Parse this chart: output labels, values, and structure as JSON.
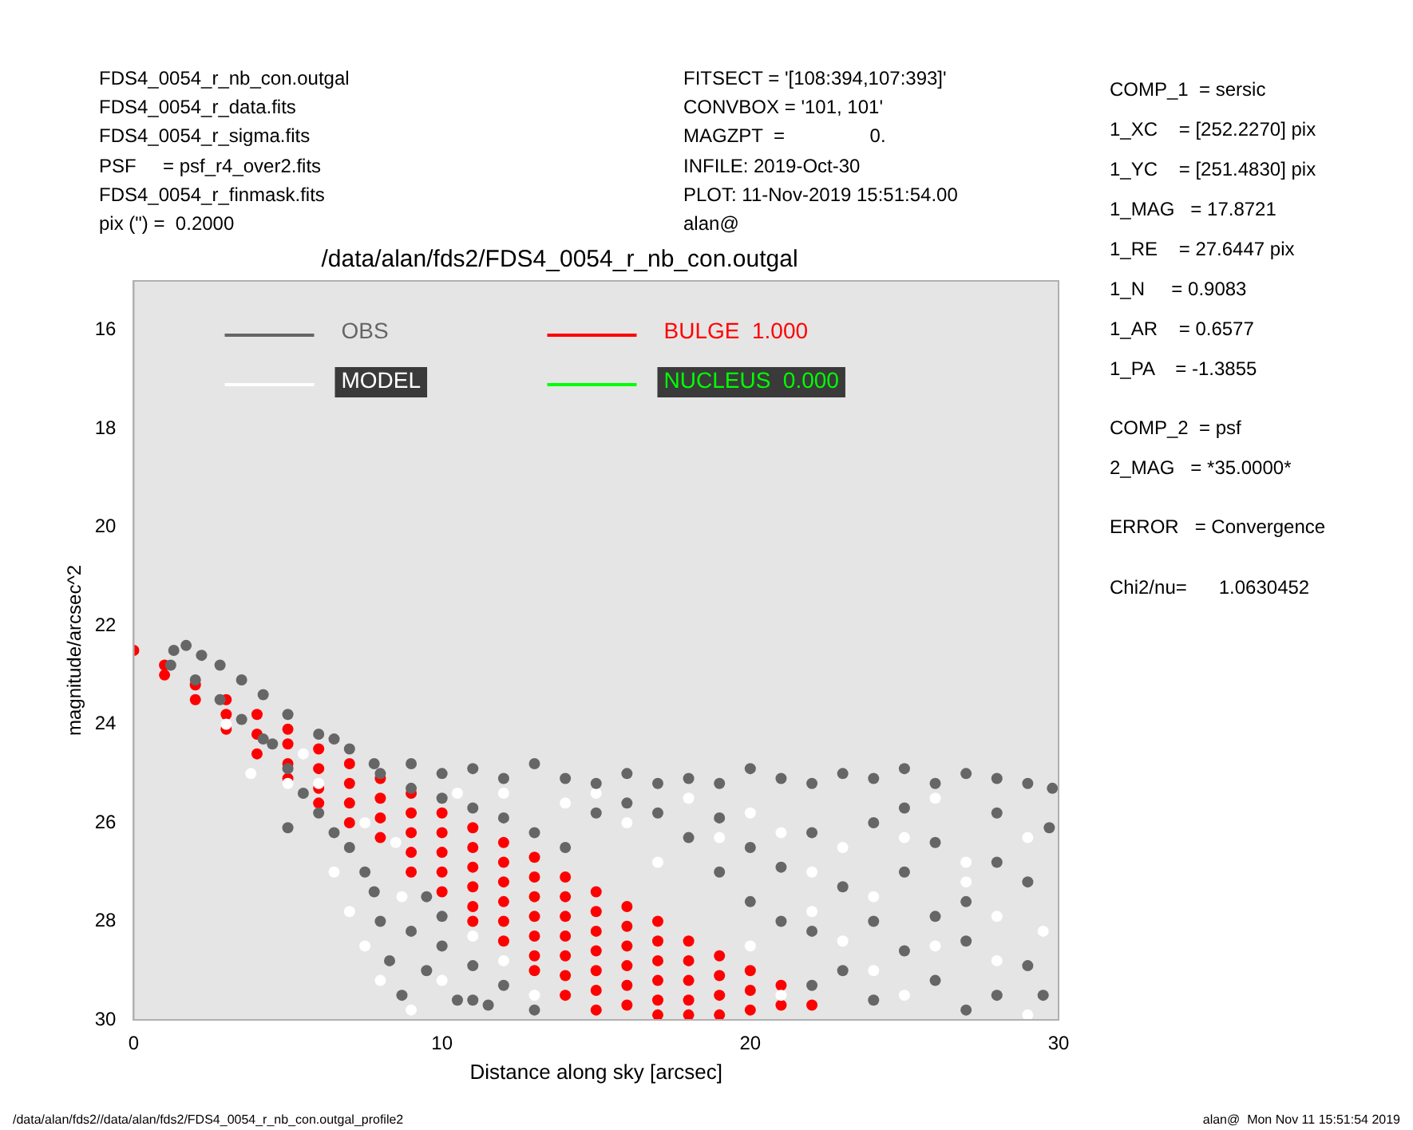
{
  "chart_data": {
    "type": "scatter",
    "title": "/data/alan/fds2/FDS4_0054_r_nb_con.outgal",
    "xlabel": "Distance along sky [arcsec]",
    "ylabel": "magnitude/arcsec^2",
    "xlim": [
      0,
      30
    ],
    "xticks": [
      0,
      10,
      20,
      30
    ],
    "ylim": [
      30,
      15
    ],
    "yticks": [
      16,
      18,
      20,
      22,
      24,
      26,
      28,
      30
    ],
    "marker": "circle",
    "legend": "top left",
    "series": [
      {
        "name": "OBS",
        "color": "#666666",
        "x": [
          1.3,
          1.7,
          2.2,
          2.8,
          3.5,
          4.2,
          5,
          6,
          6.5,
          7,
          7.8,
          1.2,
          2,
          2.8,
          3.5,
          4.2,
          4.5,
          5,
          5.5,
          6,
          6.5,
          7,
          7.5,
          7.8,
          8,
          8.3,
          8.7,
          5,
          9,
          10,
          11,
          12,
          13,
          14,
          15,
          16,
          17,
          18,
          19,
          20,
          21,
          22,
          23,
          24,
          25,
          26,
          27,
          28,
          29,
          29.8,
          17,
          18,
          19,
          20,
          21,
          22,
          23,
          24,
          25,
          26,
          27,
          28,
          29,
          29.7,
          24,
          25,
          26,
          27,
          28,
          29,
          23,
          22,
          24,
          26,
          27,
          29.5,
          21,
          20,
          19,
          22,
          25,
          28,
          16,
          15,
          9,
          9.5,
          10,
          10.5,
          11,
          11.5,
          12,
          13,
          9.5,
          10,
          11,
          8,
          9,
          10,
          11,
          12,
          13,
          14
        ],
        "values": [
          22.5,
          22.4,
          22.6,
          22.8,
          23.1,
          23.4,
          23.8,
          24.2,
          24.3,
          24.5,
          24.8,
          22.8,
          23.1,
          23.5,
          23.9,
          24.3,
          24.4,
          24.9,
          25.4,
          25.8,
          26.2,
          26.5,
          27.0,
          27.4,
          28.0,
          28.8,
          29.5,
          26.1,
          24.8,
          25.0,
          24.9,
          25.1,
          24.8,
          25.1,
          25.2,
          25.0,
          25.2,
          25.1,
          25.2,
          24.9,
          25.1,
          25.2,
          25.0,
          25.1,
          24.9,
          25.2,
          25.0,
          25.1,
          25.2,
          25.3,
          25.8,
          26.3,
          25.9,
          26.5,
          26.9,
          26.2,
          27.3,
          26.0,
          27.0,
          26.4,
          27.6,
          26.8,
          27.2,
          26.1,
          28.0,
          28.6,
          29.2,
          28.4,
          29.5,
          28.9,
          29.0,
          28.2,
          29.6,
          27.9,
          29.8,
          29.5,
          28.0,
          27.6,
          27.0,
          29.3,
          25.7,
          25.8,
          25.6,
          25.8,
          28.2,
          29.0,
          28.5,
          29.6,
          28.9,
          29.7,
          29.3,
          29.8,
          27.5,
          27.9,
          29.6,
          25.0,
          25.3,
          25.5,
          25.7,
          25.9,
          26.2,
          26.5
        ]
      },
      {
        "name": "MODEL",
        "color": "#ffffff",
        "x": [
          3,
          3.8,
          5,
          6,
          6.5,
          7,
          7.5,
          8,
          8.5,
          8.7,
          9,
          10,
          11,
          12,
          13,
          14,
          16,
          17,
          18,
          19,
          20,
          21,
          22,
          23,
          24,
          25,
          26,
          27,
          28,
          29,
          29.5,
          21,
          22,
          23,
          24,
          25,
          26,
          27,
          28,
          29,
          20,
          7.5,
          10.5,
          12,
          15,
          5.5
        ],
        "values": [
          24.0,
          25.0,
          25.2,
          25.2,
          27.0,
          27.8,
          28.5,
          29.2,
          26.4,
          27.5,
          29.8,
          29.2,
          28.3,
          28.8,
          29.5,
          25.6,
          26.0,
          26.8,
          25.5,
          26.3,
          25.8,
          26.2,
          27.0,
          26.5,
          27.5,
          26.3,
          28.5,
          26.8,
          27.9,
          26.3,
          28.2,
          29.5,
          27.8,
          28.4,
          29.0,
          29.5,
          25.5,
          27.2,
          28.8,
          29.9,
          28.5,
          26.0,
          25.4,
          25.4,
          25.4,
          24.6
        ]
      },
      {
        "name": "BULGE  1.000",
        "color": "#ff0000",
        "x": [
          0,
          1,
          1,
          2,
          2,
          3,
          3,
          3,
          4,
          4,
          4,
          5,
          5,
          5,
          5,
          6,
          6,
          6,
          6,
          7,
          7,
          7,
          7,
          8,
          8,
          8,
          8,
          9,
          9,
          9,
          9,
          9,
          10,
          10,
          10,
          10,
          10,
          11,
          11,
          11,
          11,
          11,
          11,
          12,
          12,
          12,
          12,
          12,
          12,
          13,
          13,
          13,
          13,
          13,
          13,
          13,
          14,
          14,
          14,
          14,
          14,
          14,
          14,
          15,
          15,
          15,
          15,
          15,
          15,
          15,
          16,
          16,
          16,
          16,
          16,
          16,
          17,
          17,
          17,
          17,
          17,
          17,
          18,
          18,
          18,
          18,
          18,
          19,
          19,
          19,
          19,
          20,
          20,
          20,
          21,
          21,
          22
        ],
        "values": [
          22.5,
          22.8,
          23.0,
          23.2,
          23.5,
          23.5,
          23.8,
          24.1,
          23.8,
          24.2,
          24.6,
          24.1,
          24.4,
          24.8,
          25.1,
          24.5,
          24.9,
          25.3,
          25.6,
          24.8,
          25.2,
          25.6,
          26.0,
          25.1,
          25.5,
          25.9,
          26.3,
          25.4,
          25.8,
          26.2,
          26.6,
          27.0,
          25.8,
          26.2,
          26.6,
          27.0,
          27.4,
          26.1,
          26.5,
          26.9,
          27.3,
          27.7,
          28.0,
          26.4,
          26.8,
          27.2,
          27.6,
          28.0,
          28.4,
          26.7,
          27.1,
          27.5,
          27.9,
          28.3,
          28.7,
          29.0,
          27.1,
          27.5,
          27.9,
          28.3,
          28.7,
          29.1,
          29.5,
          27.4,
          27.8,
          28.2,
          28.6,
          29.0,
          29.4,
          29.8,
          27.7,
          28.1,
          28.5,
          28.9,
          29.3,
          29.7,
          28.0,
          28.4,
          28.8,
          29.2,
          29.6,
          29.9,
          28.4,
          28.8,
          29.2,
          29.6,
          29.9,
          28.7,
          29.1,
          29.5,
          29.9,
          29.0,
          29.4,
          29.8,
          29.3,
          29.7,
          29.7
        ]
      },
      {
        "name": "NUCLEUS  0.000",
        "color": "#00ff00"
      }
    ],
    "annotations": [
      "FDS4_0054_r_nb_con.outgal",
      "FDS4_0054_r_data.fits",
      "FDS4_0054_r_sigma.fits",
      "PSF     = psf_r4_over2.fits",
      "FDS4_0054_r_finmask.fits",
      "pix (\") =  0.2000",
      "FITSECT = '[108:394,107:393]'",
      "CONVBOX = '101, 101'",
      "MAGZPT  =                0.",
      "INFILE: 2019-Oct-30",
      "PLOT: 11-Nov-2019 15:51:54.00",
      "alan@",
      "COMP_1  = sersic",
      "1_XC    = [252.2270] pix",
      "1_YC    = [251.4830] pix",
      "1_MAG   = 17.8721",
      "1_RE    = 27.6447 pix",
      "1_N     = 0.9083",
      "1_AR    = 0.6577",
      "1_PA    = -1.3855",
      "COMP_2  = psf",
      "2_MAG   = *35.0000*",
      "ERROR   = Convergence",
      "Chi2/nu=      1.0630452",
      "/data/alan/fds2//data/alan/fds2/FDS4_0054_r_nb_con.outgal_profile2",
      "alan@  Mon Nov 11 15:51:54 2019"
    ]
  }
}
